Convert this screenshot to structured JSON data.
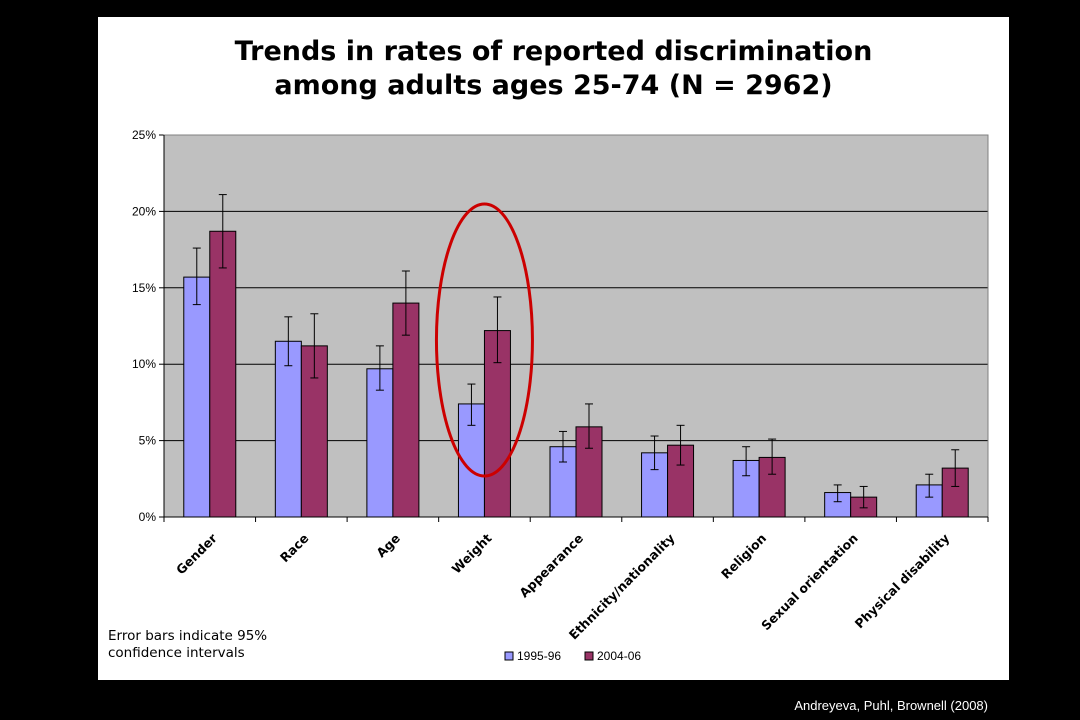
{
  "chart_data": {
    "type": "bar",
    "title_line1": "Trends in rates of reported discrimination",
    "title_line2": "among adults ages 25-74 (N = 2962)",
    "categories": [
      "Gender",
      "Race",
      "Age",
      "Weight",
      "Appearance",
      "Ethnicity/nationality",
      "Religion",
      "Sexual orientation",
      "Physical disability"
    ],
    "series": [
      {
        "name": "1995-96",
        "color": "#9999ff",
        "values": [
          15.7,
          11.5,
          9.7,
          7.4,
          4.6,
          4.2,
          3.7,
          1.6,
          2.1
        ],
        "err_low": [
          13.9,
          9.9,
          8.3,
          6.0,
          3.6,
          3.1,
          2.7,
          1.0,
          1.3
        ],
        "err_high": [
          17.6,
          13.1,
          11.2,
          8.7,
          5.6,
          5.3,
          4.6,
          2.1,
          2.8
        ]
      },
      {
        "name": "2004-06",
        "color": "#993366",
        "values": [
          18.7,
          11.2,
          14.0,
          12.2,
          5.9,
          4.7,
          3.9,
          1.3,
          3.2
        ],
        "err_low": [
          16.3,
          9.1,
          11.9,
          10.1,
          4.5,
          3.4,
          2.8,
          0.6,
          2.0
        ],
        "err_high": [
          21.1,
          13.3,
          16.1,
          14.4,
          7.4,
          6.0,
          5.1,
          2.0,
          4.4
        ]
      }
    ],
    "ylim": [
      0,
      25
    ],
    "yticks": [
      "0%",
      "5%",
      "10%",
      "15%",
      "20%",
      "25%"
    ],
    "grid": true,
    "legend_position": "bottom",
    "plot_color": "#c0c0c0",
    "highlight_category": "Weight",
    "highlight_color": "#cc0000"
  },
  "note_line1": "Error bars indicate 95%",
  "note_line2": "confidence intervals",
  "citation": "Andreyeva, Puhl, Brownell (2008)"
}
